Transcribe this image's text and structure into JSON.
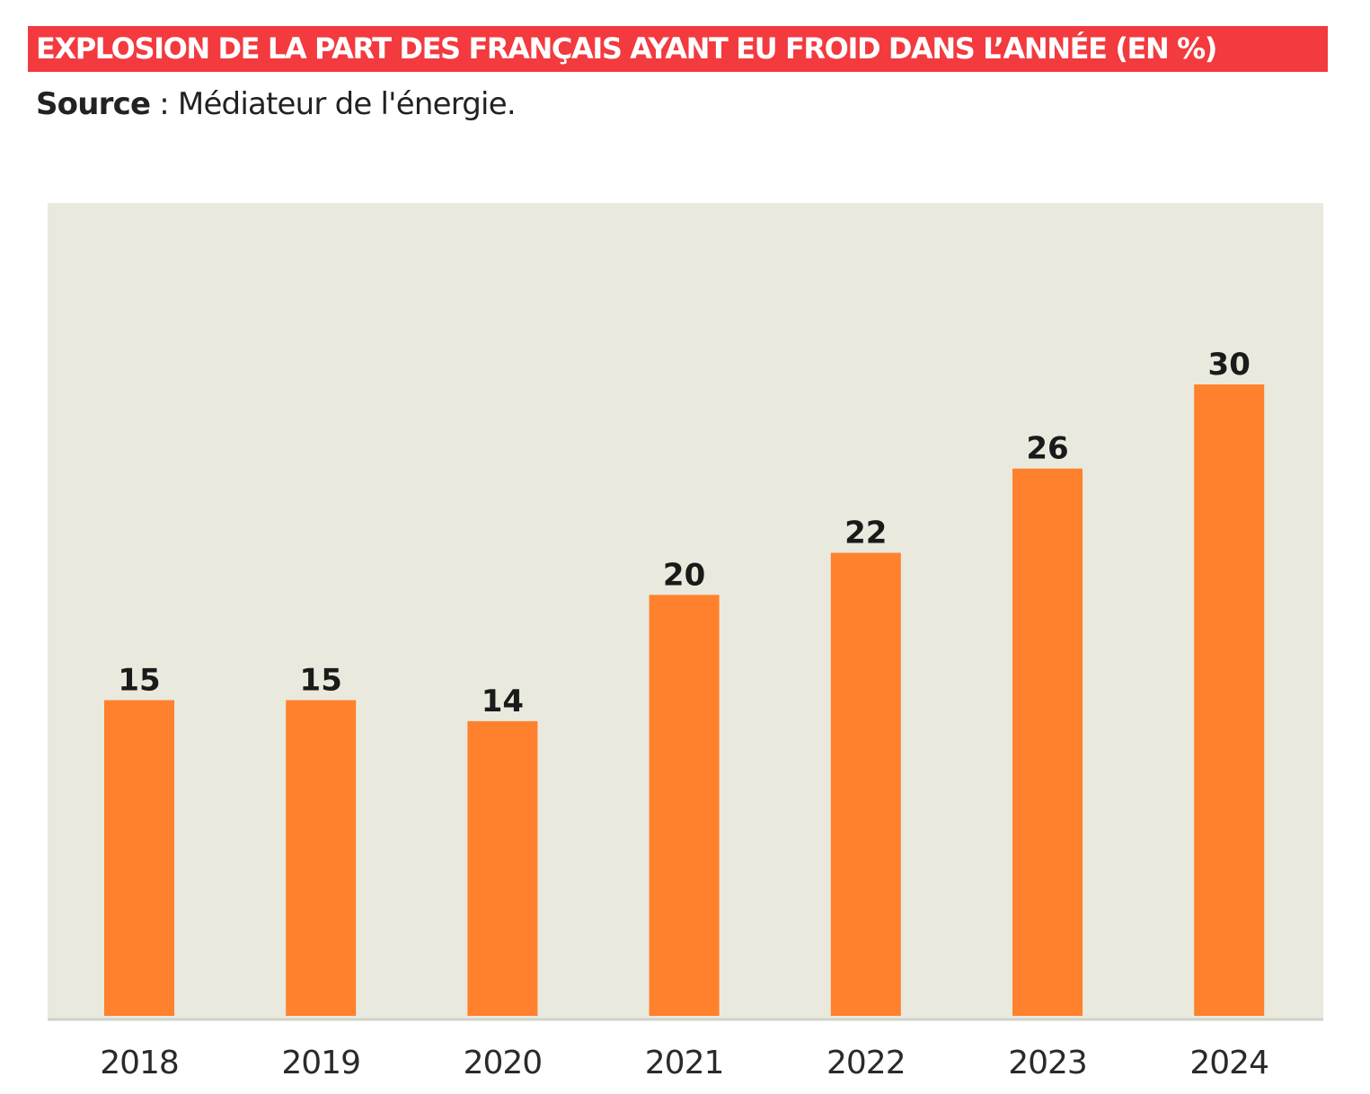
{
  "header": {
    "title": "EXPLOSION DE LA PART DES FRANÇAIS AYANT EU FROID DANS L’ANNÉE (EN %)",
    "source_label": "Source",
    "source_separator": " : ",
    "source_text": "Médiateur de l'énergie."
  },
  "colors": {
    "title_background": "#f23a3f",
    "plot_background": "#e9e9de",
    "bar": "#ff812d",
    "baseline": "#cfd3c9",
    "text": "#1a1a1a"
  },
  "chart_data": {
    "type": "bar",
    "title": "EXPLOSION DE LA PART DES FRANÇAIS AYANT EU FROID DANS L’ANNÉE (EN %)",
    "categories": [
      "2018",
      "2019",
      "2020",
      "2021",
      "2022",
      "2023",
      "2024"
    ],
    "values": [
      15,
      15,
      14,
      20,
      22,
      26,
      30
    ],
    "data_labels": [
      "15",
      "15",
      "14",
      "20",
      "22",
      "26",
      "30"
    ],
    "xlabel": "",
    "ylabel": "",
    "ylim": [
      0,
      30
    ],
    "grid": false,
    "legend": "none",
    "y_axis_visible": false
  }
}
